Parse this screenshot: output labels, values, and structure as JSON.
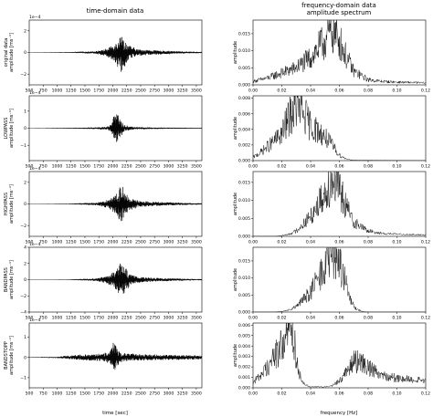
{
  "figure": {
    "left_title": "time-domain data",
    "right_title_line1": "frequency-domain data",
    "right_title_line2": "amplitude spectrum",
    "bottom_left_xlabel": "time [sec]",
    "bottom_right_xlabel": "frequency [Hz]",
    "offset_label": "1e−4"
  },
  "chart_data": [
    {
      "type": "line",
      "panel": "time",
      "row": 0,
      "ylabel1": "original data",
      "ylabel2": "amplitude [ms⁻¹]",
      "offset": "1e−4",
      "xlim": [
        500,
        3600
      ],
      "ylim": [
        -3,
        3
      ],
      "xticks": [
        "500",
        "750",
        "1000",
        "1250",
        "1500",
        "1750",
        "2000",
        "2250",
        "2500",
        "2750",
        "3000",
        "3250",
        "3500"
      ],
      "yticks": [
        {
          "v": 2,
          "t": "2"
        },
        {
          "v": 0,
          "t": "0"
        },
        {
          "v": -2,
          "t": "−2"
        }
      ],
      "envelope": {
        "t": [
          500,
          1200,
          1700,
          1900,
          2050,
          2120,
          2160,
          2200,
          2300,
          2450,
          2700,
          3000,
          3300,
          3600
        ],
        "a": [
          0.02,
          0.05,
          0.2,
          0.6,
          1.6,
          2.6,
          3.0,
          2.2,
          1.0,
          0.5,
          0.35,
          0.25,
          0.15,
          0.1
        ]
      }
    },
    {
      "type": "line",
      "panel": "freq",
      "row": 0,
      "ylabel1": "amplitude",
      "xlim": [
        0,
        0.12
      ],
      "ylim": [
        0,
        0.019
      ],
      "xticks": [
        "0.00",
        "0.02",
        "0.04",
        "0.06",
        "0.08",
        "0.10",
        "0.12"
      ],
      "yticks": [
        {
          "v": 0,
          "t": "0.000"
        },
        {
          "v": 0.005,
          "t": "0.005"
        },
        {
          "v": 0.01,
          "t": "0.010"
        },
        {
          "v": 0.015,
          "t": "0.015"
        }
      ],
      "profile": {
        "f": [
          0,
          0.005,
          0.01,
          0.02,
          0.03,
          0.04,
          0.05,
          0.055,
          0.06,
          0.065,
          0.07,
          0.08,
          0.09,
          0.1,
          0.12
        ],
        "a": [
          0.001,
          0.0015,
          0.002,
          0.0035,
          0.005,
          0.008,
          0.013,
          0.016,
          0.013,
          0.008,
          0.004,
          0.0015,
          0.001,
          0.0008,
          0.0006
        ]
      }
    },
    {
      "type": "line",
      "panel": "time",
      "row": 1,
      "ylabel1": "LOWPASS",
      "ylabel2": "amplitude [ms⁻¹]",
      "offset": "1e−4",
      "xlim": [
        500,
        3600
      ],
      "ylim": [
        -1.9,
        1.9
      ],
      "xticks": [
        "500",
        "750",
        "1000",
        "1250",
        "1500",
        "1750",
        "2000",
        "2250",
        "2500",
        "2750",
        "3000",
        "3250",
        "3500"
      ],
      "yticks": [
        {
          "v": 1,
          "t": "1"
        },
        {
          "v": 0,
          "t": "0"
        },
        {
          "v": -1,
          "t": "−1"
        }
      ],
      "envelope": {
        "t": [
          500,
          1200,
          1700,
          1900,
          1980,
          2030,
          2070,
          2120,
          2200,
          2400,
          2700,
          3000,
          3300,
          3600
        ],
        "a": [
          0.01,
          0.04,
          0.08,
          0.15,
          0.4,
          1.4,
          1.8,
          1.0,
          0.3,
          0.12,
          0.08,
          0.06,
          0.05,
          0.04
        ]
      }
    },
    {
      "type": "line",
      "panel": "freq",
      "row": 1,
      "ylabel1": "amplitude",
      "xlim": [
        0,
        0.12
      ],
      "ylim": [
        0,
        0.0083
      ],
      "xticks": [
        "0.00",
        "0.02",
        "0.04",
        "0.06",
        "0.08",
        "0.10",
        "0.12"
      ],
      "yticks": [
        {
          "v": 0,
          "t": "0.000"
        },
        {
          "v": 0.002,
          "t": "0.002"
        },
        {
          "v": 0.004,
          "t": "0.004"
        },
        {
          "v": 0.006,
          "t": "0.006"
        },
        {
          "v": 0.008,
          "t": "0.008"
        }
      ],
      "profile": {
        "f": [
          0,
          0.005,
          0.01,
          0.015,
          0.02,
          0.025,
          0.03,
          0.035,
          0.04,
          0.045,
          0.05,
          0.055,
          0.06,
          0.065,
          0.07,
          0.12
        ],
        "a": [
          0.0004,
          0.001,
          0.0018,
          0.0025,
          0.0035,
          0.0055,
          0.007,
          0.006,
          0.0045,
          0.0038,
          0.003,
          0.002,
          0.0007,
          0.0002,
          5e-05,
          0.0
        ]
      }
    },
    {
      "type": "line",
      "panel": "time",
      "row": 2,
      "ylabel1": "HIGHPASS",
      "ylabel2": "amplitude [ms⁻¹]",
      "offset": "1e−4",
      "xlim": [
        500,
        3600
      ],
      "ylim": [
        -3,
        3
      ],
      "xticks": [
        "500",
        "750",
        "1000",
        "1250",
        "1500",
        "1750",
        "2000",
        "2250",
        "2500",
        "2750",
        "3000",
        "3250",
        "3500"
      ],
      "yticks": [
        {
          "v": 2,
          "t": "2"
        },
        {
          "v": 0,
          "t": "0"
        },
        {
          "v": -2,
          "t": "−2"
        }
      ],
      "envelope": {
        "t": [
          500,
          1200,
          1700,
          1900,
          2050,
          2120,
          2160,
          2200,
          2300,
          2450,
          2700,
          3000,
          3300,
          3600
        ],
        "a": [
          0.01,
          0.05,
          0.2,
          0.6,
          1.5,
          2.5,
          2.9,
          2.2,
          1.0,
          0.5,
          0.35,
          0.25,
          0.15,
          0.1
        ]
      }
    },
    {
      "type": "line",
      "panel": "freq",
      "row": 2,
      "ylabel1": "amplitude",
      "xlim": [
        0,
        0.12
      ],
      "ylim": [
        0,
        0.018
      ],
      "xticks": [
        "0.00",
        "0.02",
        "0.04",
        "0.06",
        "0.08",
        "0.10",
        "0.12"
      ],
      "yticks": [
        {
          "v": 0,
          "t": "0.000"
        },
        {
          "v": 0.005,
          "t": "0.005"
        },
        {
          "v": 0.01,
          "t": "0.010"
        },
        {
          "v": 0.015,
          "t": "0.015"
        }
      ],
      "profile": {
        "f": [
          0,
          0.015,
          0.02,
          0.025,
          0.03,
          0.04,
          0.05,
          0.055,
          0.06,
          0.065,
          0.07,
          0.08,
          0.09,
          0.1,
          0.12
        ],
        "a": [
          0,
          0,
          0.0002,
          0.0006,
          0.0015,
          0.0055,
          0.012,
          0.016,
          0.013,
          0.008,
          0.004,
          0.0015,
          0.0008,
          0.0006,
          0.0004
        ]
      }
    },
    {
      "type": "line",
      "panel": "time",
      "row": 3,
      "ylabel1": "BANDPASS",
      "ylabel2": "amplitude [ms⁻¹]",
      "offset": "1e−4",
      "xlim": [
        500,
        3600
      ],
      "ylim": [
        -4,
        4
      ],
      "xticks": [
        "500",
        "750",
        "1000",
        "1250",
        "1500",
        "1750",
        "2000",
        "2250",
        "2500",
        "2750",
        "3000",
        "3250",
        "3500"
      ],
      "yticks": [
        {
          "v": 4,
          "t": "4"
        },
        {
          "v": 2,
          "t": "2"
        },
        {
          "v": 0,
          "t": "0"
        },
        {
          "v": -2,
          "t": "−2"
        },
        {
          "v": -4,
          "t": "−4"
        }
      ],
      "envelope": {
        "t": [
          500,
          1200,
          1700,
          1900,
          2050,
          2120,
          2160,
          2200,
          2300,
          2450,
          2700,
          3000,
          3300,
          3600
        ],
        "a": [
          0.01,
          0.05,
          0.25,
          0.8,
          2.0,
          3.2,
          3.7,
          2.8,
          1.3,
          0.6,
          0.4,
          0.3,
          0.18,
          0.12
        ]
      }
    },
    {
      "type": "line",
      "panel": "freq",
      "row": 3,
      "ylabel1": "amplitude",
      "xlim": [
        0,
        0.12
      ],
      "ylim": [
        0,
        0.019
      ],
      "xticks": [
        "0.00",
        "0.02",
        "0.04",
        "0.06",
        "0.08",
        "0.10",
        "0.12"
      ],
      "yticks": [
        {
          "v": 0,
          "t": "0.000"
        },
        {
          "v": 0.005,
          "t": "0.005"
        },
        {
          "v": 0.01,
          "t": "0.010"
        },
        {
          "v": 0.015,
          "t": "0.015"
        }
      ],
      "profile": {
        "f": [
          0,
          0.015,
          0.02,
          0.025,
          0.03,
          0.04,
          0.05,
          0.055,
          0.06,
          0.064,
          0.068,
          0.072,
          0.076,
          0.08,
          0.12
        ],
        "a": [
          0,
          0,
          0.0002,
          0.0006,
          0.0015,
          0.006,
          0.013,
          0.017,
          0.015,
          0.009,
          0.003,
          0.0008,
          0.0002,
          0,
          0
        ]
      }
    },
    {
      "type": "line",
      "panel": "time",
      "row": 4,
      "ylabel1": "BANDSTOPP",
      "ylabel2": "amplitude [ms⁻¹]",
      "offset": "1e−4",
      "xlim": [
        500,
        3600
      ],
      "ylim": [
        -1.5,
        1.7
      ],
      "xticks": [
        "500",
        "750",
        "1000",
        "1250",
        "1500",
        "1750",
        "2000",
        "2250",
        "2500",
        "2750",
        "3000",
        "3250",
        "3500"
      ],
      "yticks": [
        {
          "v": 1,
          "t": "1"
        },
        {
          "v": 0,
          "t": "0"
        },
        {
          "v": -1,
          "t": "−1"
        }
      ],
      "envelope": {
        "t": [
          500,
          1000,
          1200,
          1500,
          1800,
          1950,
          2010,
          2040,
          2080,
          2150,
          2300,
          2500,
          2800,
          3100,
          3400,
          3600
        ],
        "a": [
          0.02,
          0.05,
          0.15,
          0.25,
          0.3,
          0.5,
          1.2,
          1.4,
          0.7,
          0.35,
          0.3,
          0.25,
          0.22,
          0.2,
          0.18,
          0.15
        ]
      }
    },
    {
      "type": "line",
      "panel": "freq",
      "row": 4,
      "ylabel1": "amplitude",
      "xlim": [
        0,
        0.12
      ],
      "ylim": [
        0,
        0.0062
      ],
      "xticks": [
        "0.00",
        "0.02",
        "0.04",
        "0.06",
        "0.08",
        "0.10",
        "0.12"
      ],
      "yticks": [
        {
          "v": 0,
          "t": "0.000"
        },
        {
          "v": 0.001,
          "t": "0.001"
        },
        {
          "v": 0.002,
          "t": "0.002"
        },
        {
          "v": 0.003,
          "t": "0.003"
        },
        {
          "v": 0.004,
          "t": "0.004"
        },
        {
          "v": 0.005,
          "t": "0.005"
        },
        {
          "v": 0.006,
          "t": "0.006"
        }
      ],
      "profile": {
        "f": [
          0,
          0.005,
          0.01,
          0.015,
          0.02,
          0.025,
          0.028,
          0.03,
          0.033,
          0.036,
          0.04,
          0.045,
          0.05,
          0.055,
          0.06,
          0.065,
          0.07,
          0.075,
          0.08,
          0.09,
          0.1,
          0.12
        ],
        "a": [
          0.0005,
          0.0012,
          0.002,
          0.003,
          0.004,
          0.0055,
          0.005,
          0.003,
          0.001,
          0.0003,
          0.0001,
          0.0001,
          0.0001,
          0.0002,
          0.0007,
          0.0015,
          0.0025,
          0.0025,
          0.002,
          0.0013,
          0.0009,
          0.0007
        ]
      }
    }
  ]
}
